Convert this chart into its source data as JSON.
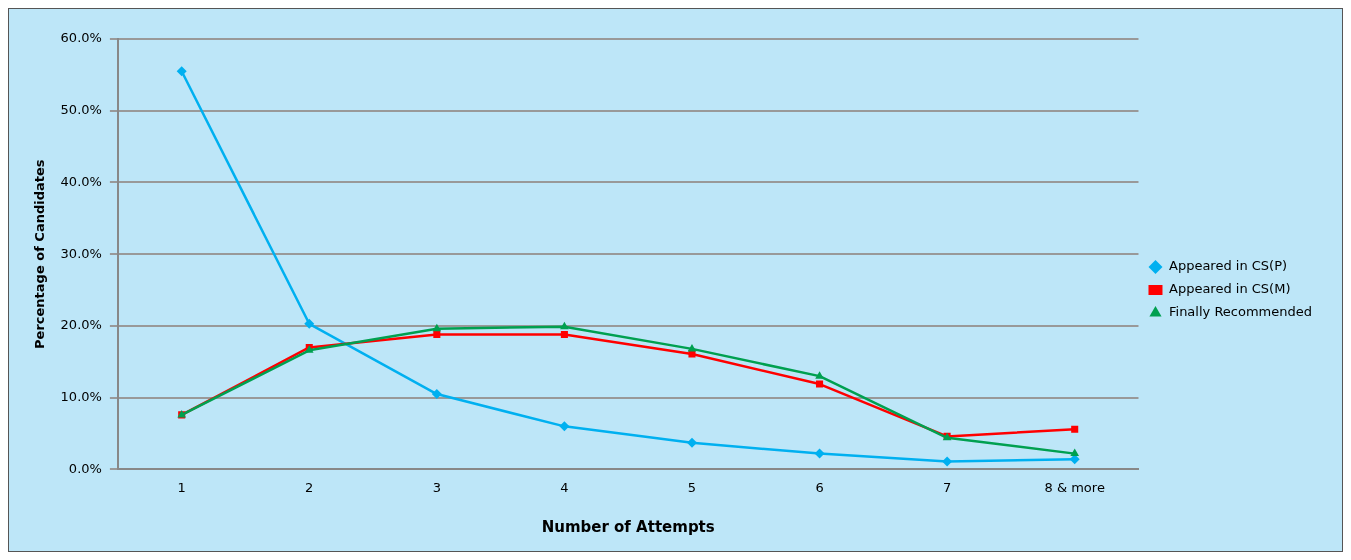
{
  "chart_data": {
    "type": "line",
    "xlabel": "Number of Attempts",
    "ylabel": "Percentage of Candidates",
    "categories": [
      "1",
      "2",
      "3",
      "4",
      "5",
      "6",
      "7",
      "8 & more"
    ],
    "series": [
      {
        "name": "Appeared in CS(P)",
        "color": "#00b0f0",
        "marker": "diamond",
        "values": [
          55.5,
          20.3,
          10.5,
          6.0,
          3.7,
          2.2,
          1.1,
          1.4
        ]
      },
      {
        "name": "Appeared in CS(M)",
        "color": "#ff0000",
        "marker": "square",
        "values": [
          7.6,
          17.0,
          18.8,
          18.8,
          16.1,
          11.9,
          4.6,
          5.6
        ]
      },
      {
        "name": "Finally Recommended",
        "color": "#00a050",
        "marker": "triangle",
        "values": [
          7.6,
          16.6,
          19.6,
          19.9,
          16.8,
          13.0,
          4.4,
          2.2
        ]
      }
    ],
    "ylim": [
      0,
      60
    ],
    "yticks": [
      {
        "value": 0,
        "label": "0.0%"
      },
      {
        "value": 10,
        "label": "10.0%"
      },
      {
        "value": 20,
        "label": "20.0%"
      },
      {
        "value": 30,
        "label": "30.0%"
      },
      {
        "value": 40,
        "label": "40.0%"
      },
      {
        "value": 50,
        "label": "50.0%"
      },
      {
        "value": 60,
        "label": "60.0%"
      }
    ],
    "grid": "y",
    "legend": "right",
    "line_style": "solid"
  }
}
